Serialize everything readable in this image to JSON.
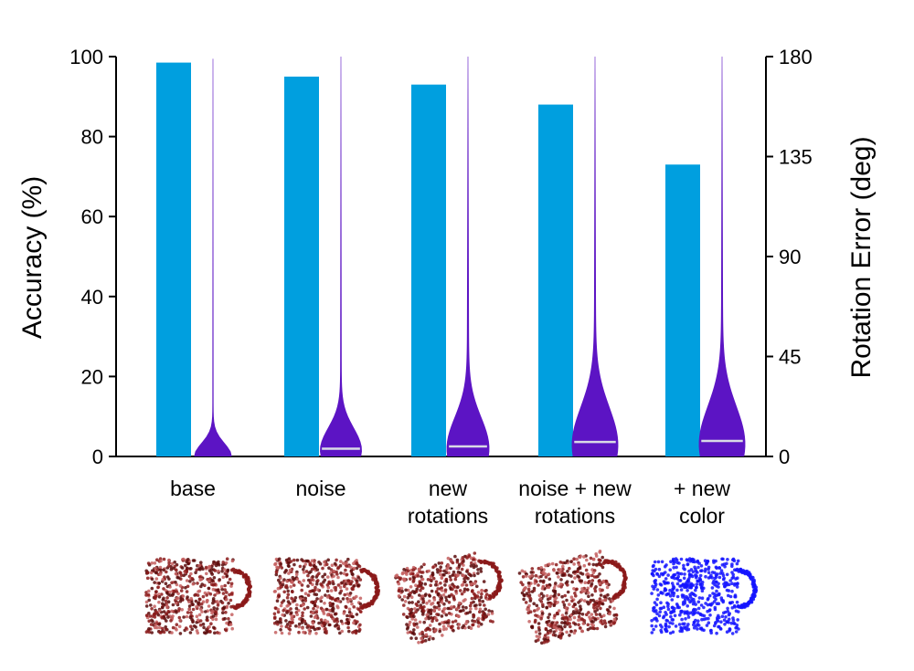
{
  "chart_data": {
    "type": "bar",
    "categories": [
      [
        "base"
      ],
      [
        "noise"
      ],
      [
        "new",
        "rotations"
      ],
      [
        "noise + new",
        "rotations"
      ],
      [
        "+ new",
        "color"
      ]
    ],
    "series": [
      {
        "values": [
          98.5,
          95,
          93,
          88,
          73
        ],
        "color": "#009fdf",
        "axis": "left",
        "kind": "bar"
      },
      {
        "axis": "right",
        "kind": "violin",
        "color": "#5c14c4",
        "median_color": "#d9d9e6",
        "medians": [
          0,
          3.5,
          4.5,
          6.5,
          7
        ],
        "max": [
          179,
          180,
          180,
          180,
          180
        ]
      }
    ],
    "ylabel": "Accuracy (%)",
    "ylabel_right": "Rotation Error (deg)",
    "ylim": [
      0,
      100
    ],
    "ylim_right": [
      0,
      180
    ],
    "yticks": [
      0,
      20,
      40,
      60,
      80,
      100
    ],
    "yticks_right": [
      0,
      45,
      90,
      135,
      180
    ],
    "grid": false,
    "legend": "none"
  },
  "thumbnails": [
    {
      "icon": "mug-pointcloud-icon",
      "color": "#8b1a1a"
    },
    {
      "icon": "mug-pointcloud-icon",
      "color": "#8b1a1a"
    },
    {
      "icon": "mug-pointcloud-icon",
      "color": "#8b1a1a"
    },
    {
      "icon": "mug-pointcloud-icon",
      "color": "#8b1a1a"
    },
    {
      "icon": "mug-pointcloud-icon",
      "color": "#1414ff"
    }
  ]
}
